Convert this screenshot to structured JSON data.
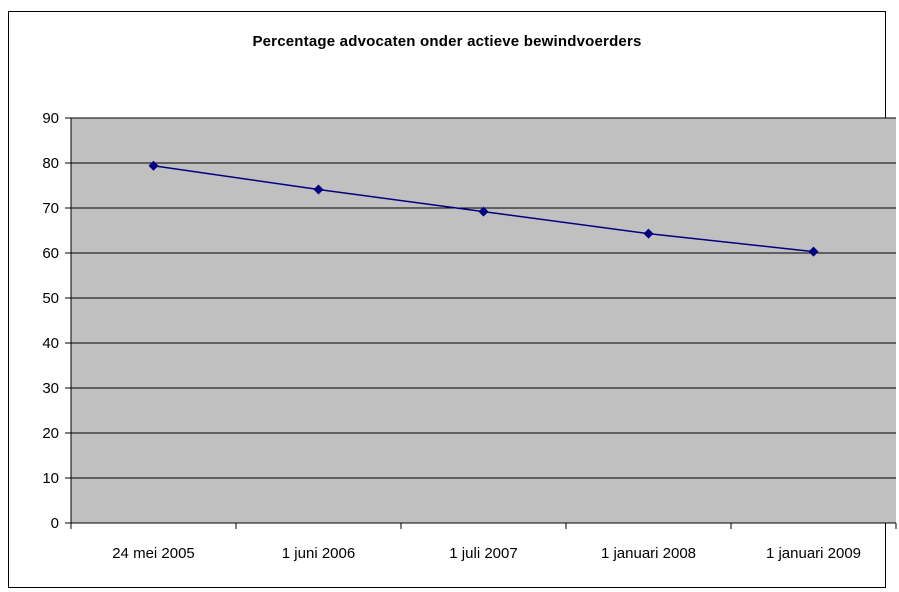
{
  "chart_data": {
    "type": "line",
    "title": "Percentage advocaten onder actieve bewindvoerders",
    "xlabel": "",
    "ylabel": "",
    "categories": [
      "24 mei 2005",
      "1 juni 2006",
      "1 juli 2007",
      "1 januari 2008",
      "1 januari 2009"
    ],
    "series": [
      {
        "values": [
          79.4,
          74.1,
          69.2,
          64.3,
          60.3
        ]
      }
    ],
    "ylim": [
      0,
      90
    ],
    "ytick_step": 10,
    "grid": "horizontal",
    "legend": "none",
    "colors": {
      "plot_background": "#c0c0c0",
      "line": "#000080",
      "marker": "#000080",
      "gridline": "#000000"
    },
    "marker": "diamond"
  }
}
